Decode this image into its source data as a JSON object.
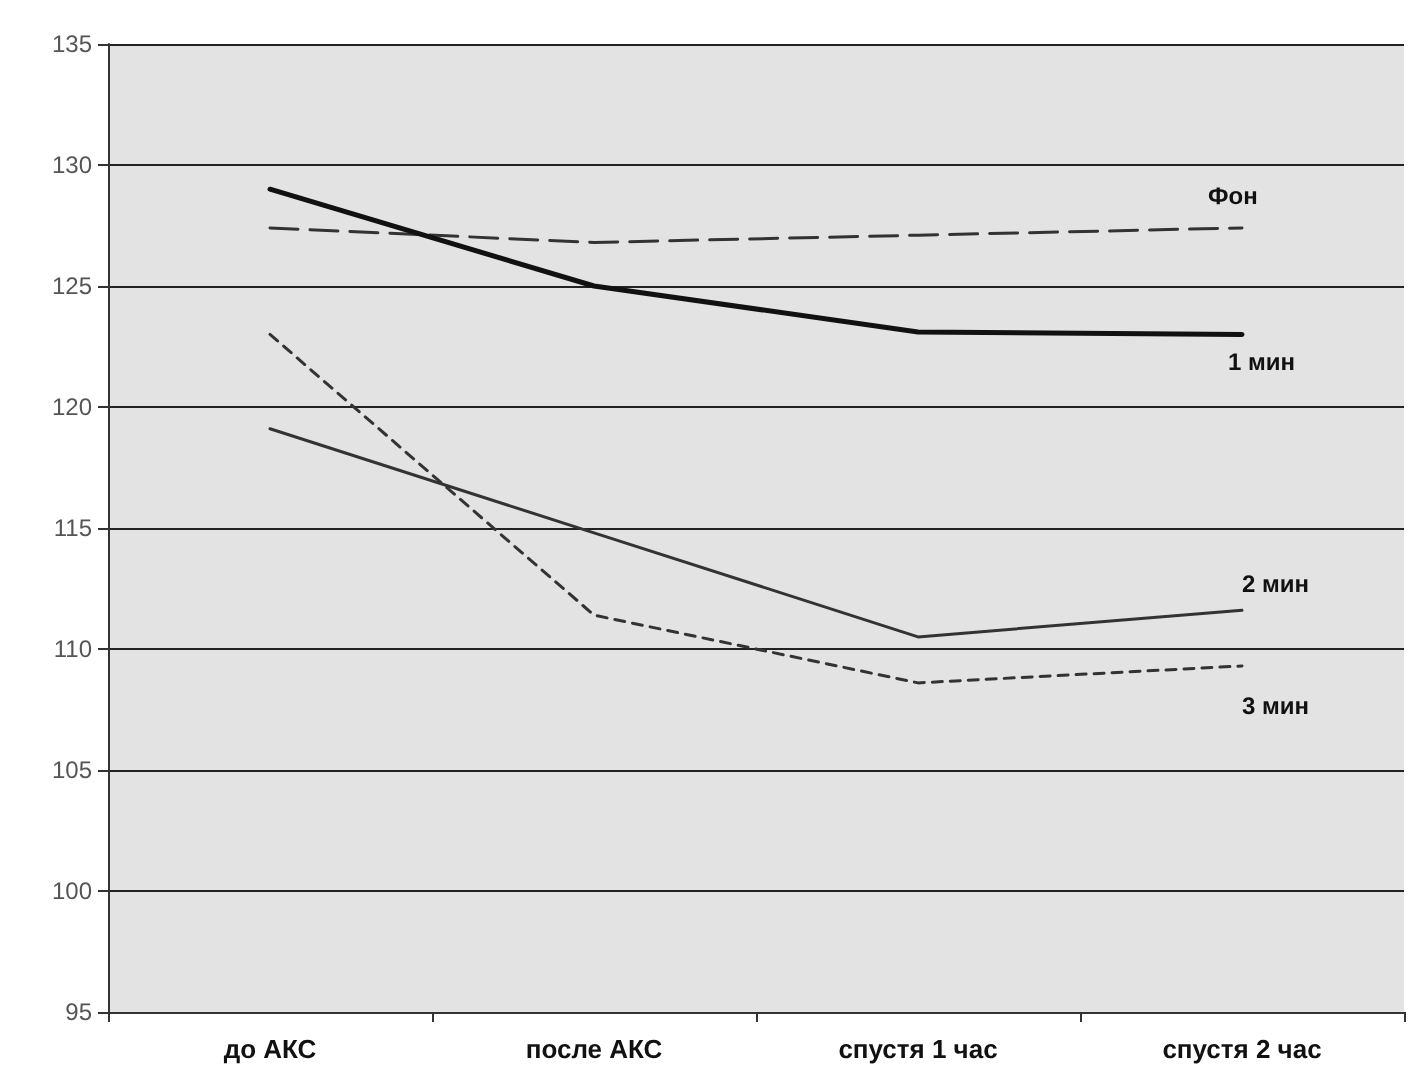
{
  "chart_data": {
    "type": "line",
    "categories": [
      "до АКС",
      "после АКС",
      "спустя 1 час",
      "спустя 2 час"
    ],
    "series": [
      {
        "name": "Фон",
        "color": "#333333",
        "line_style": "dashed",
        "values": [
          127.4,
          126.8,
          127.1,
          127.4
        ]
      },
      {
        "name": "1 мин",
        "color": "#111111",
        "line_style": "solid",
        "values": [
          129,
          125,
          123.1,
          123
        ]
      },
      {
        "name": "2 мин",
        "color": "#333333",
        "line_style": "solid",
        "values": [
          119.1,
          114.8,
          110.5,
          111.6
        ]
      },
      {
        "name": "3 мин",
        "color": "#333333",
        "line_style": "dotted",
        "values": [
          123,
          111.4,
          108.6,
          109.3
        ]
      }
    ],
    "ylim": [
      95,
      135
    ],
    "yticks": [
      95,
      100,
      105,
      110,
      115,
      120,
      125,
      130,
      135
    ],
    "grid": "y",
    "legend": false,
    "marker": "none"
  }
}
